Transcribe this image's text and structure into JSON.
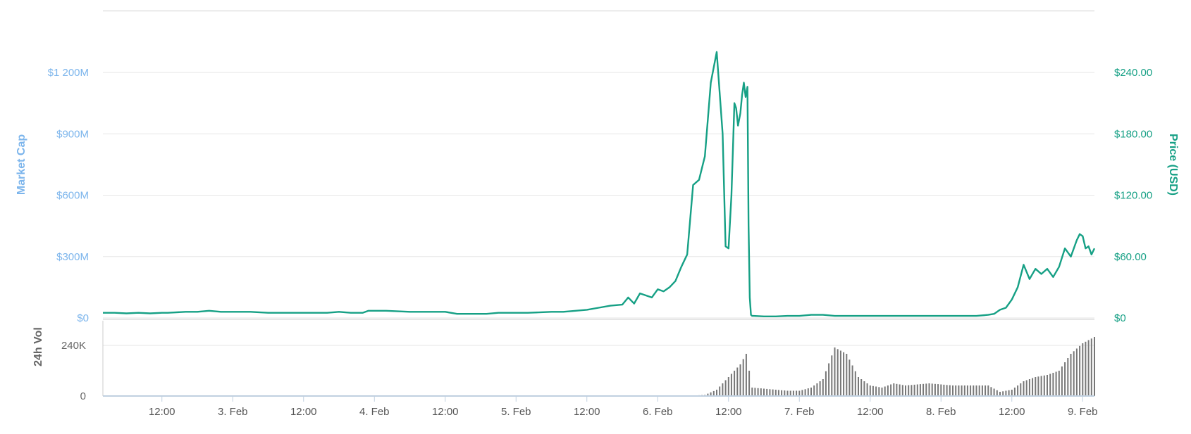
{
  "chart_data": [
    {
      "type": "line",
      "ylabel_left": "Market Cap",
      "ylabel_right": "Price (USD)",
      "left_ticks": [
        "$0",
        "$300M",
        "$600M",
        "$900M",
        "$1 200M"
      ],
      "right_ticks": [
        "$0",
        "$60.00",
        "$120.00",
        "$180.00",
        "$240.00"
      ],
      "ylim_left": [
        0,
        1200
      ],
      "ylim_right": [
        0,
        240
      ],
      "x_ticks": [
        "12:00",
        "3. Feb",
        "12:00",
        "4. Feb",
        "12:00",
        "5. Feb",
        "12:00",
        "6. Feb",
        "12:00",
        "7. Feb",
        "12:00",
        "8. Feb",
        "12:00",
        "9. Feb"
      ],
      "x_tick_hours": [
        12,
        24,
        36,
        48,
        60,
        72,
        84,
        96,
        108,
        120,
        132,
        144,
        156,
        168
      ],
      "xlim_hours": [
        2,
        170
      ],
      "color": "#16a085",
      "series": [
        {
          "x": [
            2,
            4,
            6,
            8,
            10,
            12,
            13,
            16,
            18,
            20,
            22,
            24,
            27,
            30,
            32,
            34,
            38,
            40,
            42,
            44,
            46,
            47,
            50,
            54,
            57,
            60,
            62,
            64,
            67,
            69,
            72,
            74,
            78,
            80,
            84,
            86,
            88,
            90,
            91,
            92,
            93,
            94,
            95,
            96,
            97,
            98,
            99,
            100,
            101,
            102,
            103,
            104,
            105,
            106,
            107,
            107.5,
            108,
            108.5,
            109,
            109.3,
            109.6,
            110,
            110.3,
            110.6,
            110.9,
            111.2,
            111.4,
            111.6,
            111.8,
            112,
            112.2,
            114,
            116,
            118,
            120,
            122,
            124,
            126,
            128,
            130,
            134,
            138,
            142,
            146,
            150,
            152,
            153,
            154,
            155,
            156,
            157,
            158,
            159,
            160,
            161,
            162,
            163,
            164,
            165,
            166,
            167,
            167.5,
            168,
            168.5,
            169,
            169.5,
            170
          ],
          "y": [
            5,
            5,
            4.5,
            5,
            4.5,
            5,
            5,
            6,
            6,
            7,
            6,
            6,
            6,
            5,
            5,
            5,
            5,
            5,
            6,
            5,
            5,
            7,
            7,
            6,
            6,
            6,
            4,
            4,
            4,
            5,
            5,
            5,
            6,
            6,
            8,
            10,
            12,
            13,
            20,
            14,
            24,
            22,
            20,
            28,
            26,
            30,
            36,
            50,
            62,
            130,
            135,
            158,
            230,
            260,
            180,
            70,
            68,
            120,
            210,
            205,
            188,
            200,
            218,
            230,
            216,
            226,
            90,
            20,
            3,
            2,
            2,
            1.5,
            1.5,
            2,
            2,
            3,
            3,
            2,
            2,
            2,
            2,
            2,
            2,
            2,
            2,
            3,
            4,
            8,
            10,
            18,
            30,
            52,
            38,
            48,
            43,
            48,
            40,
            50,
            68,
            60,
            76,
            82,
            80,
            68,
            70,
            62,
            68
          ]
        }
      ]
    },
    {
      "type": "bar",
      "ylabel": "24h Vol",
      "ticks": [
        "0",
        "240K"
      ],
      "ylim": [
        0,
        310
      ],
      "color": "#777777",
      "series": [
        {
          "x": [
            2,
            100,
            104,
            106,
            108,
            110,
            111,
            112,
            116,
            118,
            120,
            122,
            124,
            126,
            128,
            130,
            132,
            134,
            136,
            138,
            140,
            142,
            144,
            146,
            148,
            150,
            152,
            154,
            156,
            158,
            160,
            162,
            164,
            166,
            168,
            170
          ],
          "y": [
            0,
            0,
            5,
            30,
            90,
            150,
            200,
            40,
            30,
            25,
            25,
            40,
            80,
            230,
            200,
            90,
            50,
            40,
            60,
            50,
            55,
            60,
            55,
            50,
            50,
            50,
            50,
            20,
            30,
            70,
            90,
            100,
            120,
            200,
            250,
            280
          ]
        }
      ]
    }
  ]
}
